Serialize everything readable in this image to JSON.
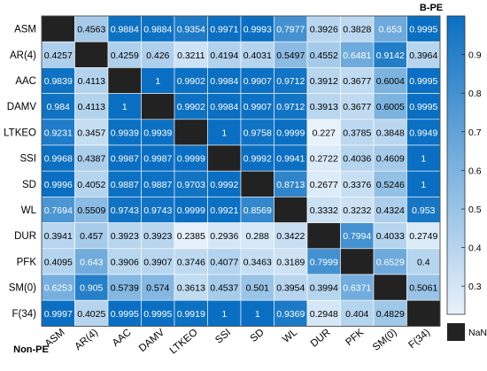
{
  "chart_data": {
    "type": "heatmap",
    "upper_label": "B-PE",
    "lower_label": "Non-PE",
    "rows": [
      "ASM",
      "AR(4)",
      "AAC",
      "DAMV",
      "LTKEO",
      "SSI",
      "SD",
      "WL",
      "DUR",
      "PFK",
      "SM(0)",
      "F(34)"
    ],
    "columns": [
      "ASM",
      "AR(4)",
      "AAC",
      "DAMV",
      "LTKEO",
      "SSI",
      "SD",
      "WL",
      "DUR",
      "PFK",
      "SM(0)",
      "F(34)"
    ],
    "values": [
      [
        null,
        0.4563,
        0.9884,
        0.9884,
        0.9354,
        0.9971,
        0.9993,
        0.7977,
        0.3926,
        0.3828,
        0.653,
        0.9995
      ],
      [
        0.4257,
        null,
        0.4259,
        0.426,
        0.3211,
        0.4194,
        0.4031,
        0.5497,
        0.4552,
        0.6481,
        0.9142,
        0.3964
      ],
      [
        0.9839,
        0.4113,
        null,
        1,
        0.9902,
        0.9984,
        0.9907,
        0.9712,
        0.3912,
        0.3677,
        0.6004,
        0.9995
      ],
      [
        0.984,
        0.4113,
        1,
        null,
        0.9902,
        0.9984,
        0.9907,
        0.9712,
        0.3913,
        0.3677,
        0.6005,
        0.9995
      ],
      [
        0.9231,
        0.3457,
        0.9939,
        0.9939,
        null,
        1,
        0.9758,
        0.9999,
        0.227,
        0.3785,
        0.3848,
        0.9949
      ],
      [
        0.9968,
        0.4387,
        0.9987,
        0.9987,
        0.9999,
        null,
        0.9992,
        0.9941,
        0.2722,
        0.4036,
        0.4609,
        1
      ],
      [
        0.9996,
        0.4052,
        0.9887,
        0.9887,
        0.9703,
        0.9992,
        null,
        0.8713,
        0.2677,
        0.3376,
        0.5246,
        1
      ],
      [
        0.7694,
        0.5509,
        0.9743,
        0.9743,
        0.9999,
        0.9921,
        0.8569,
        null,
        0.3332,
        0.3232,
        0.4324,
        0.953
      ],
      [
        0.3941,
        0.457,
        0.3923,
        0.3923,
        0.2385,
        0.2936,
        0.288,
        0.3422,
        null,
        0.7994,
        0.4033,
        0.2749
      ],
      [
        0.4095,
        0.643,
        0.3906,
        0.3907,
        0.3746,
        0.4077,
        0.3463,
        0.3189,
        0.7999,
        null,
        0.6529,
        0.4
      ],
      [
        0.6253,
        0.905,
        0.5739,
        0.574,
        0.3613,
        0.4537,
        0.501,
        0.3954,
        0.3994,
        0.6371,
        null,
        0.5061
      ],
      [
        0.9997,
        0.4025,
        0.9995,
        0.9995,
        0.9919,
        1,
        1,
        0.9369,
        0.2948,
        0.404,
        0.4829,
        null
      ]
    ],
    "value_labels": [
      [
        "",
        "0.4563",
        "0.9884",
        "0.9884",
        "0.9354",
        "0.9971",
        "0.9993",
        "0.7977",
        "0.3926",
        "0.3828",
        "0.653",
        "0.9995"
      ],
      [
        "0.4257",
        "",
        "0.4259",
        "0.426",
        "0.3211",
        "0.4194",
        "0.4031",
        "0.5497",
        "0.4552",
        "0.6481",
        "0.9142",
        "0.3964"
      ],
      [
        "0.9839",
        "0.4113",
        "",
        "1",
        "0.9902",
        "0.9984",
        "0.9907",
        "0.9712",
        "0.3912",
        "0.3677",
        "0.6004",
        "0.9995"
      ],
      [
        "0.984",
        "0.4113",
        "1",
        "",
        "0.9902",
        "0.9984",
        "0.9907",
        "0.9712",
        "0.3913",
        "0.3677",
        "0.6005",
        "0.9995"
      ],
      [
        "0.9231",
        "0.3457",
        "0.9939",
        "0.9939",
        "",
        "1",
        "0.9758",
        "0.9999",
        "0.227",
        "0.3785",
        "0.3848",
        "0.9949"
      ],
      [
        "0.9968",
        "0.4387",
        "0.9987",
        "0.9987",
        "0.9999",
        "",
        "0.9992",
        "0.9941",
        "0.2722",
        "0.4036",
        "0.4609",
        "1"
      ],
      [
        "0.9996",
        "0.4052",
        "0.9887",
        "0.9887",
        "0.9703",
        "0.9992",
        "",
        "0.8713",
        "0.2677",
        "0.3376",
        "0.5246",
        "1"
      ],
      [
        "0.7694",
        "0.5509",
        "0.9743",
        "0.9743",
        "0.9999",
        "0.9921",
        "0.8569",
        "",
        "0.3332",
        "0.3232",
        "0.4324",
        "0.953"
      ],
      [
        "0.3941",
        "0.457",
        "0.3923",
        "0.3923",
        "0.2385",
        "0.2936",
        "0.288",
        "0.3422",
        "",
        "0.7994",
        "0.4033",
        "0.2749"
      ],
      [
        "0.4095",
        "0.643",
        "0.3906",
        "0.3907",
        "0.3746",
        "0.4077",
        "0.3463",
        "0.3189",
        "0.7999",
        "",
        "0.6529",
        "0.4"
      ],
      [
        "0.6253",
        "0.905",
        "0.5739",
        "0.574",
        "0.3613",
        "0.4537",
        "0.501",
        "0.3954",
        "0.3994",
        "0.6371",
        "",
        "0.5061"
      ],
      [
        "0.9997",
        "0.4025",
        "0.9995",
        "0.9995",
        "0.9919",
        "1",
        "1",
        "0.9369",
        "0.2948",
        "0.404",
        "0.4829",
        ""
      ]
    ],
    "colorbar": {
      "range": [
        0.227,
        1
      ],
      "ticks": [
        0.3,
        0.4,
        0.5,
        0.6,
        0.7,
        0.8,
        0.9
      ],
      "tick_labels": [
        "0.3",
        "0.4",
        "0.5",
        "0.6",
        "0.7",
        "0.8",
        "0.9"
      ],
      "color_low": "#e8f2fb",
      "color_high": "#0a6fc2"
    },
    "nan_legend": {
      "label": "NaN",
      "color": "#222222"
    },
    "grid": true
  }
}
